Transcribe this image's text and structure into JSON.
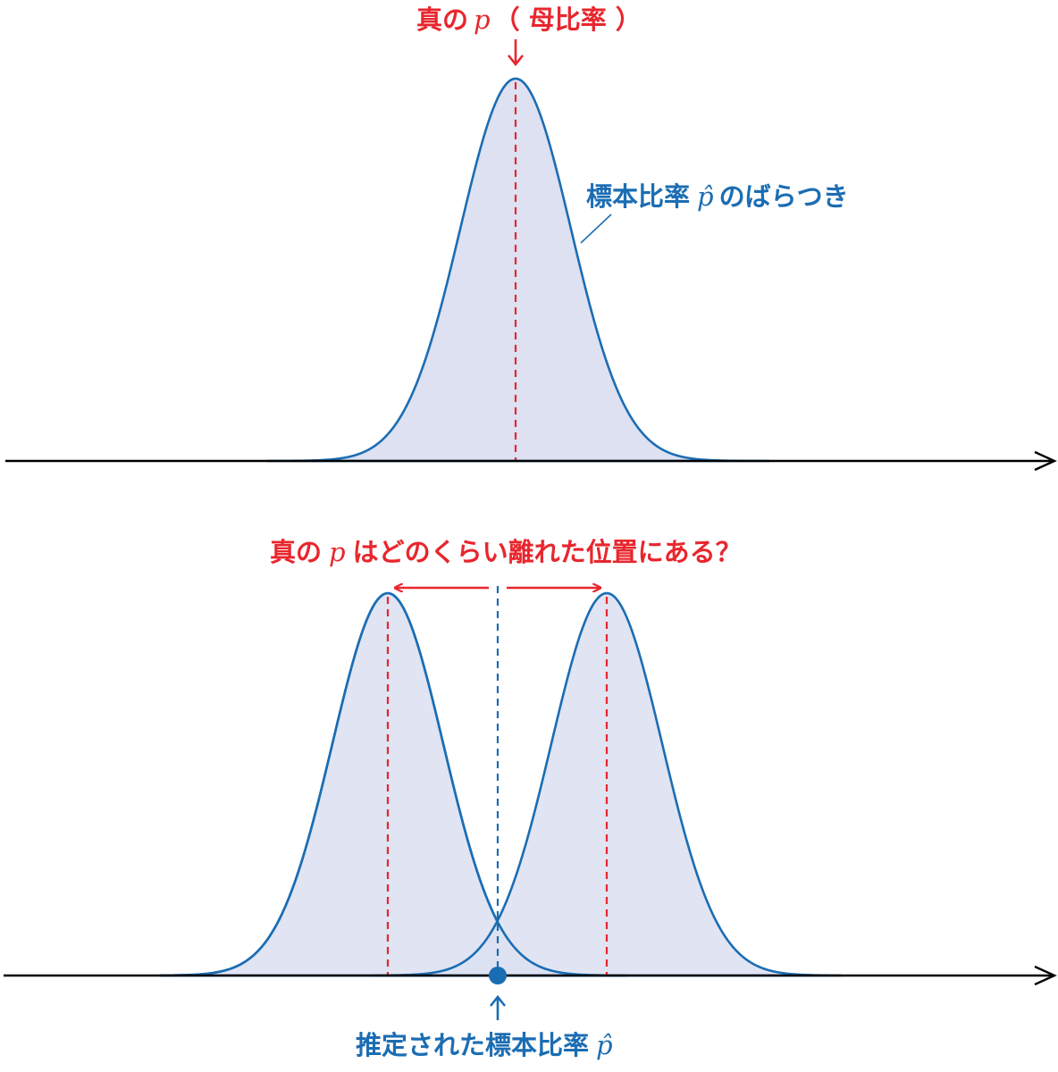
{
  "top_panel": {
    "true_p_label": {
      "prefix": "真の",
      "symbol": "p",
      "suffix": "（ 母比率 ）"
    },
    "sampling_label": {
      "prefix": "標本比率",
      "symbol": "p̂",
      "suffix": "のばらつき"
    }
  },
  "bottom_panel": {
    "question_label": {
      "prefix": "真の",
      "symbol": "p",
      "suffix": "はどのくらい離れた位置にある？"
    },
    "estimate_label": {
      "prefix": "推定された標本比率",
      "symbol": "p̂"
    }
  },
  "colors": {
    "curve_stroke": "#1b6db3",
    "curve_fill": "#dde1f2",
    "true_value_red": "#e8262d",
    "estimate_blue": "#1b6db3",
    "axis": "#000000"
  }
}
